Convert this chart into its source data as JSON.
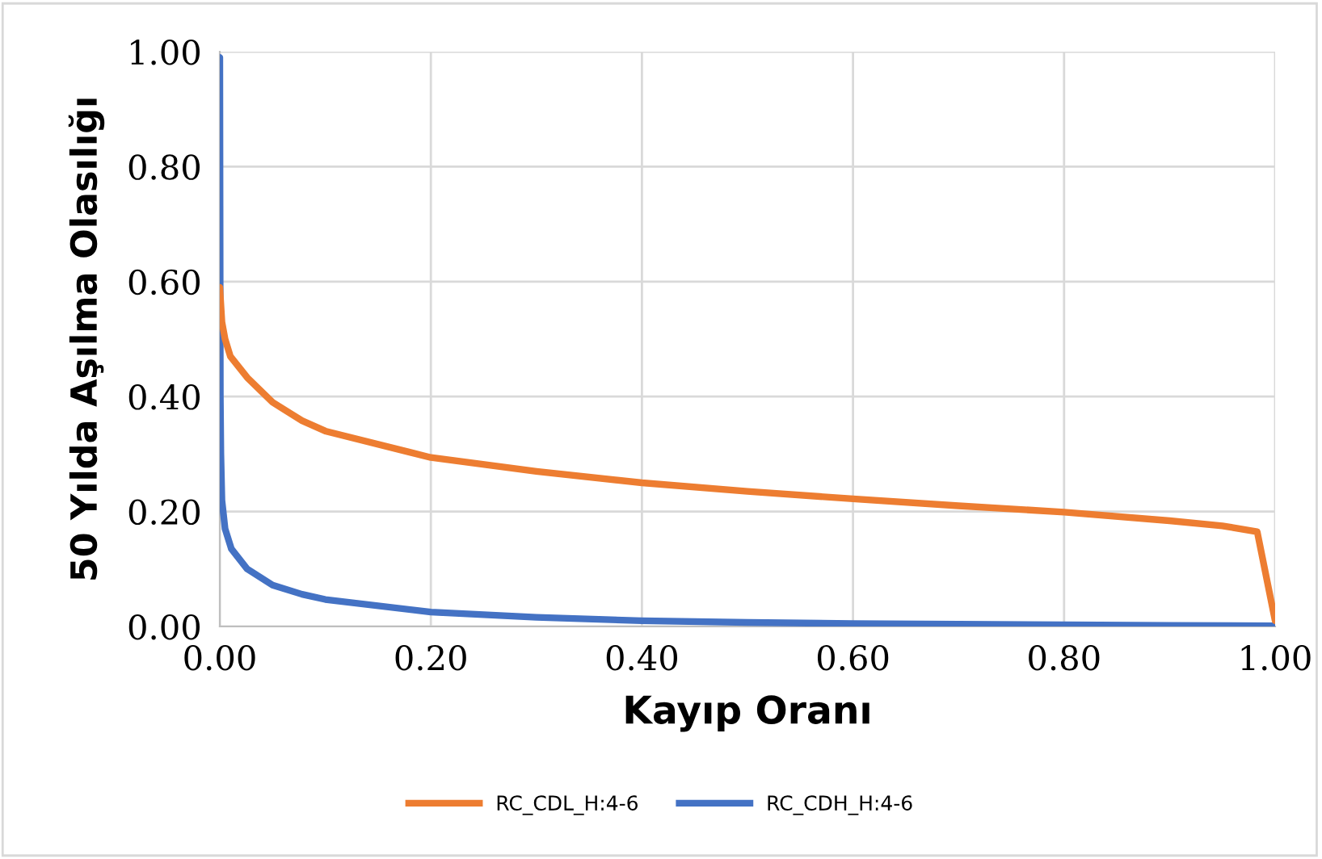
{
  "chart_data": {
    "type": "line",
    "xlabel": "Kayıp Oranı",
    "ylabel": "50 Yılda Aşılma Olasılığı",
    "xlim": [
      0,
      1
    ],
    "xticks": [
      {
        "value": 0,
        "label": "0.00"
      },
      {
        "value": 0.2,
        "label": "0.20"
      },
      {
        "value": 0.4,
        "label": "0.40"
      },
      {
        "value": 0.6,
        "label": "0.60"
      },
      {
        "value": 0.8,
        "label": "0.80"
      },
      {
        "value": 1,
        "label": "1.00"
      }
    ],
    "ylim": [
      0,
      1
    ],
    "yticks": [
      {
        "value": 0,
        "label": "0.00"
      },
      {
        "value": 0.2,
        "label": "0.20"
      },
      {
        "value": 0.4,
        "label": "0.40"
      },
      {
        "value": 0.6,
        "label": "0.60"
      },
      {
        "value": 0.8,
        "label": "0.80"
      },
      {
        "value": 1,
        "label": "1.00"
      }
    ],
    "grid": true,
    "legend": "bottom",
    "marker": "none",
    "line_style": "solid",
    "series": [
      {
        "name": "RC_CDL_H:4-6",
        "color": "#ed7d31",
        "x": [
          0,
          0.002,
          0.005,
          0.01,
          0.026,
          0.05,
          0.078,
          0.1,
          0.2,
          0.3,
          0.4,
          0.5,
          0.6,
          0.7,
          0.8,
          0.9,
          0.95,
          0.983,
          1.0
        ],
        "values": [
          0.59,
          0.53,
          0.5,
          0.47,
          0.433,
          0.39,
          0.358,
          0.34,
          0.294,
          0.27,
          0.25,
          0.235,
          0.222,
          0.21,
          0.199,
          0.184,
          0.175,
          0.165,
          0.01
        ]
      },
      {
        "name": "RC_CDH_H:4-6",
        "color": "#4472c4",
        "x": [
          0,
          0.0005,
          0.001,
          0.002,
          0.005,
          0.011,
          0.026,
          0.05,
          0.078,
          0.1,
          0.2,
          0.3,
          0.4,
          0.5,
          0.6,
          0.7,
          0.8,
          0.9,
          1.0
        ],
        "values": [
          0.99,
          0.4,
          0.3,
          0.22,
          0.17,
          0.135,
          0.1,
          0.072,
          0.056,
          0.047,
          0.025,
          0.016,
          0.01,
          0.007,
          0.005,
          0.004,
          0.003,
          0.002,
          0.001
        ]
      }
    ]
  }
}
